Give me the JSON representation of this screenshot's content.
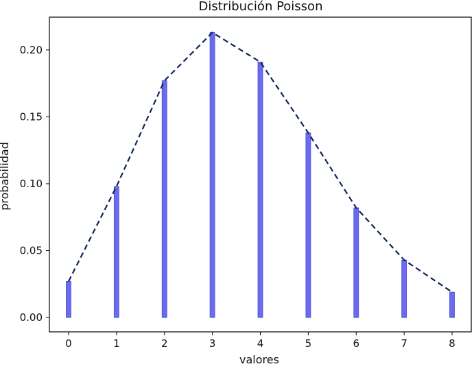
{
  "chart_data": {
    "type": "bar",
    "title": "Distribución Poisson",
    "xlabel": "valores",
    "ylabel": "probabilidad",
    "x": [
      0,
      1,
      2,
      3,
      4,
      5,
      6,
      7,
      8
    ],
    "x_tick_labels": [
      "0",
      "1",
      "2",
      "3",
      "4",
      "5",
      "6",
      "7",
      "8"
    ],
    "y_ticks": [
      0.0,
      0.05,
      0.1,
      0.15,
      0.2
    ],
    "y_tick_labels": [
      "0.00",
      "0.05",
      "0.10",
      "0.15",
      "0.20"
    ],
    "xlim": [
      -0.4,
      8.4
    ],
    "ylim": [
      -0.0107,
      0.2245
    ],
    "grid": false,
    "series": [
      {
        "kind": "bar",
        "values": [
          0.027,
          0.098,
          0.177,
          0.213,
          0.191,
          0.138,
          0.082,
          0.043,
          0.019
        ],
        "color": "#6b6bf0"
      },
      {
        "kind": "line",
        "style": "dashed",
        "values": [
          0.027,
          0.098,
          0.177,
          0.213,
          0.191,
          0.138,
          0.082,
          0.043,
          0.019
        ],
        "color": "#0d2355"
      }
    ]
  }
}
